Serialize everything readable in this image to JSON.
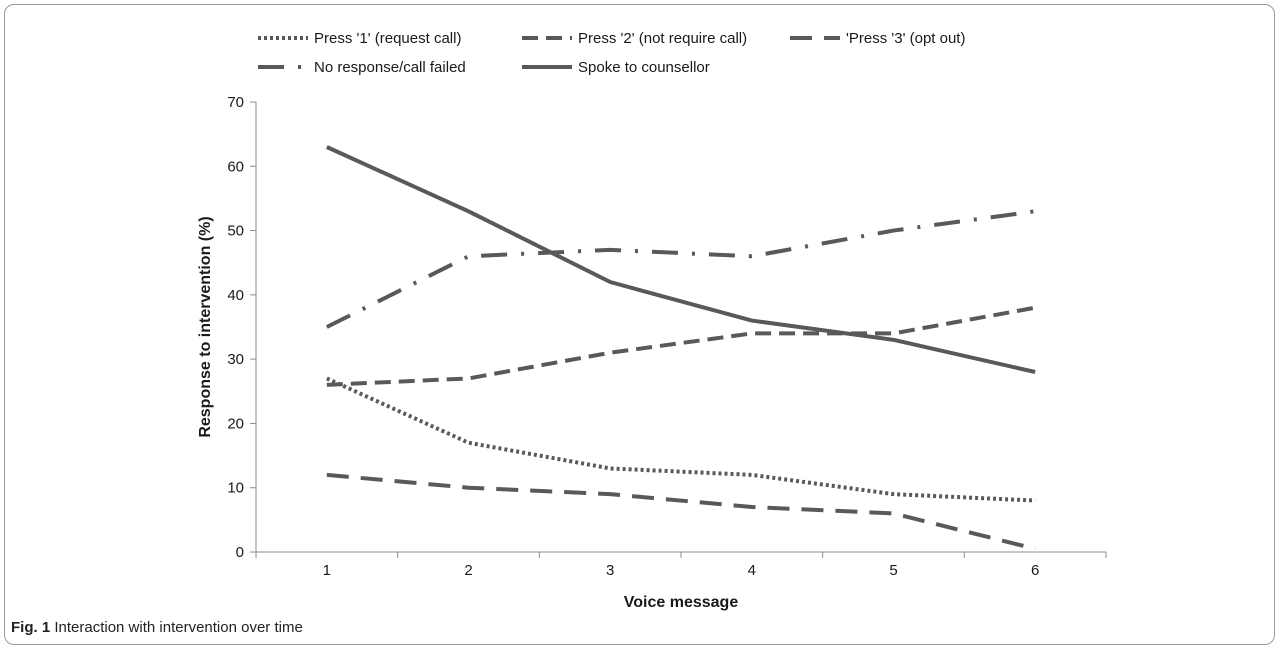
{
  "chart_data": {
    "type": "line",
    "x": [
      1,
      2,
      3,
      4,
      5,
      6
    ],
    "xlabel": "Voice message",
    "ylabel": "Response to intervention (%)",
    "ylim": [
      0,
      70
    ],
    "yticks": [
      0,
      10,
      20,
      30,
      40,
      50,
      60,
      70
    ],
    "xticks": [
      "1",
      "2",
      "3",
      "4",
      "5",
      "6"
    ],
    "grid": false,
    "legend_position": "top",
    "series": [
      {
        "name": "Press '1' (request call)",
        "style": "dotted",
        "values": [
          27,
          17,
          13,
          12,
          9,
          8
        ]
      },
      {
        "name": "Press '2' (not require call)",
        "style": "dashed",
        "values": [
          26,
          27,
          31,
          34,
          34,
          38
        ]
      },
      {
        "name": "'Press '3' (opt out)",
        "style": "long-dash",
        "values": [
          12,
          10,
          9,
          7,
          6,
          0.5
        ]
      },
      {
        "name": "No response/call failed",
        "style": "dash-dot",
        "values": [
          35,
          46,
          47,
          46,
          50,
          53
        ]
      },
      {
        "name": "Spoke to counsellor",
        "style": "solid",
        "values": [
          63,
          53,
          42,
          36,
          33,
          28
        ]
      }
    ],
    "color": "#595959"
  },
  "caption": {
    "label": "Fig. 1",
    "text": " Interaction with intervention over time"
  }
}
